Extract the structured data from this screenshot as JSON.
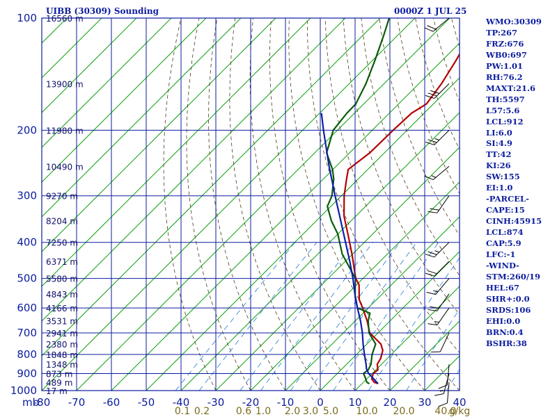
{
  "header": {
    "station": "UIBB (30309) Sounding",
    "time": "0000Z  1 JUL 25"
  },
  "chart_data": {
    "type": "skew-t log-p sounding",
    "xlabel": "",
    "ylabel": "",
    "pressure_unit_label": "mb",
    "pressure_range": [
      1000,
      100
    ],
    "temperature_range": [
      -80,
      40
    ],
    "pressure_ticks": [
      100,
      200,
      300,
      400,
      500,
      600,
      700,
      800,
      900,
      1000
    ],
    "pressure_tick_labels": [
      "100",
      "200",
      "300",
      "400",
      "500",
      "600",
      "700",
      "800",
      "900",
      "1000"
    ],
    "temperature_ticks": [
      -80,
      -70,
      -60,
      -50,
      -40,
      -30,
      -20,
      -10,
      0,
      10,
      20,
      30,
      40
    ],
    "temperature_tick_labels": [
      "-80",
      "-70",
      "-60",
      "-50",
      "-40",
      "-30",
      "-20",
      "-10",
      "0",
      "10",
      "20",
      "30",
      "40"
    ],
    "height_labels": [
      {
        "p": 100,
        "label": "16560 m"
      },
      {
        "p": 150,
        "label": "13900 m"
      },
      {
        "p": 200,
        "label": "11980 m"
      },
      {
        "p": 250,
        "label": "10490 m"
      },
      {
        "p": 300,
        "label": "9270 m"
      },
      {
        "p": 350,
        "label": "8204 m"
      },
      {
        "p": 400,
        "label": "7250 m"
      },
      {
        "p": 450,
        "label": "6371 m"
      },
      {
        "p": 500,
        "label": "5580 m"
      },
      {
        "p": 550,
        "label": "4843 m"
      },
      {
        "p": 600,
        "label": "4166 m"
      },
      {
        "p": 650,
        "label": "3531 m"
      },
      {
        "p": 700,
        "label": "2941 m"
      },
      {
        "p": 750,
        "label": "2380 m"
      },
      {
        "p": 800,
        "label": "1848 m"
      },
      {
        "p": 850,
        "label": "1348 m"
      },
      {
        "p": 900,
        "label": "873 m"
      },
      {
        "p": 950,
        "label": "489 m"
      },
      {
        "p": 1000,
        "label": "17 m"
      }
    ],
    "mixing_ratio_labels": [
      "0.1",
      "0.2",
      "0.6",
      "1.0",
      "2.0",
      "3.0",
      "5.0",
      "10.0",
      "20.0",
      "40.0",
      "g/kg"
    ],
    "series": [
      {
        "key": "temperature",
        "color": "#b40000",
        "points": [
          [
            958,
            14.6
          ],
          [
            950,
            13.1
          ],
          [
            930,
            11.4
          ],
          [
            900,
            10.3
          ],
          [
            880,
            10.6
          ],
          [
            850,
            8.8
          ],
          [
            820,
            8.1
          ],
          [
            780,
            6.4
          ],
          [
            750,
            4.0
          ],
          [
            700,
            -2.4
          ],
          [
            650,
            -6.6
          ],
          [
            600,
            -11.6
          ],
          [
            570,
            -15.0
          ],
          [
            520,
            -19.3
          ],
          [
            500,
            -22.1
          ],
          [
            430,
            -30.2
          ],
          [
            380,
            -37.1
          ],
          [
            340,
            -43.4
          ],
          [
            300,
            -49.2
          ],
          [
            270,
            -53.4
          ],
          [
            255,
            -55.6
          ],
          [
            230,
            -54.2
          ],
          [
            200,
            -54.0
          ],
          [
            180,
            -53.6
          ],
          [
            170,
            -52.0
          ],
          [
            150,
            -53.5
          ],
          [
            130,
            -56.0
          ],
          [
            112,
            -59.0
          ],
          [
            100,
            -60.2
          ]
        ]
      },
      {
        "key": "dewpoint",
        "color": "#0a5a0a",
        "points": [
          [
            958,
            12.1
          ],
          [
            950,
            11.0
          ],
          [
            920,
            9.0
          ],
          [
            900,
            7.5
          ],
          [
            880,
            7.8
          ],
          [
            850,
            7.0
          ],
          [
            800,
            4.5
          ],
          [
            750,
            2.5
          ],
          [
            700,
            -2.6
          ],
          [
            650,
            -6.3
          ],
          [
            620,
            -8.0
          ],
          [
            600,
            -13.1
          ],
          [
            560,
            -17.0
          ],
          [
            500,
            -22.2
          ],
          [
            430,
            -33.0
          ],
          [
            380,
            -40.0
          ],
          [
            350,
            -45.7
          ],
          [
            320,
            -51.0
          ],
          [
            300,
            -52.7
          ],
          [
            270,
            -57.1
          ],
          [
            255,
            -60.1
          ],
          [
            230,
            -66.6
          ],
          [
            200,
            -71.2
          ],
          [
            180,
            -72.2
          ],
          [
            170,
            -72.3
          ],
          [
            150,
            -75.2
          ],
          [
            130,
            -79.3
          ],
          [
            112,
            -83.8
          ],
          [
            100,
            -87.4
          ]
        ]
      },
      {
        "key": "parcel",
        "color": "#0f1fa8",
        "points": [
          [
            958,
            14.6
          ],
          [
            900,
            9.0
          ],
          [
            874,
            7.0
          ],
          [
            850,
            5.6
          ],
          [
            800,
            2.3
          ],
          [
            750,
            -1.1
          ],
          [
            700,
            -4.5
          ],
          [
            650,
            -8.5
          ],
          [
            600,
            -13.1
          ],
          [
            550,
            -17.9
          ],
          [
            500,
            -22.9
          ],
          [
            450,
            -28.7
          ],
          [
            400,
            -35.4
          ],
          [
            350,
            -43.0
          ],
          [
            300,
            -51.8
          ],
          [
            250,
            -62.0
          ],
          [
            200,
            -74.0
          ],
          [
            180,
            -79.5
          ]
        ]
      }
    ],
    "wind_barbs": [
      {
        "p": 100,
        "dir": 265,
        "spd": 20
      },
      {
        "p": 150,
        "dir": 260,
        "spd": 30
      },
      {
        "p": 200,
        "dir": 260,
        "spd": 25
      },
      {
        "p": 250,
        "dir": 265,
        "spd": 15
      },
      {
        "p": 300,
        "dir": 250,
        "spd": 20
      },
      {
        "p": 400,
        "dir": 260,
        "spd": 25
      },
      {
        "p": 450,
        "dir": 260,
        "spd": 20
      },
      {
        "p": 500,
        "dir": 255,
        "spd": 15
      },
      {
        "p": 550,
        "dir": 250,
        "spd": 20
      },
      {
        "p": 600,
        "dir": 250,
        "spd": 15
      },
      {
        "p": 700,
        "dir": 240,
        "spd": 10
      },
      {
        "p": 850,
        "dir": 220,
        "spd": 10
      },
      {
        "p": 900,
        "dir": 230,
        "spd": 15
      },
      {
        "p": 950,
        "dir": 220,
        "spd": 10
      }
    ],
    "colors": {
      "frame": "#0b1c9e",
      "isotherm": "#0fa00f",
      "dry_adiabat": "#4a3a1a",
      "mixing_ratio": "#1e7ad8"
    }
  },
  "params": [
    "WMO:30309",
    "TP:267",
    "FRZ:676",
    "WB0:697",
    "PW:1.01",
    "RH:76.2",
    "MAXT:21.6",
    "TH:5597",
    "L57:5.6",
    "LCL:912",
    "LI:6.0",
    "SI:4.9",
    "TT:42",
    "KI:26",
    "SW:155",
    "EI:1.0",
    "-PARCEL-",
    "CAPE:15",
    "CINH:45915",
    "LCL:874",
    "CAP:5.9",
    "LFC:-1",
    "-WIND-",
    "STM:260/19",
    "HEL:67",
    "SHR+:0.0",
    "SRDS:106",
    "EHI:0.0",
    "BRN:0.4",
    "BSHR:38"
  ]
}
